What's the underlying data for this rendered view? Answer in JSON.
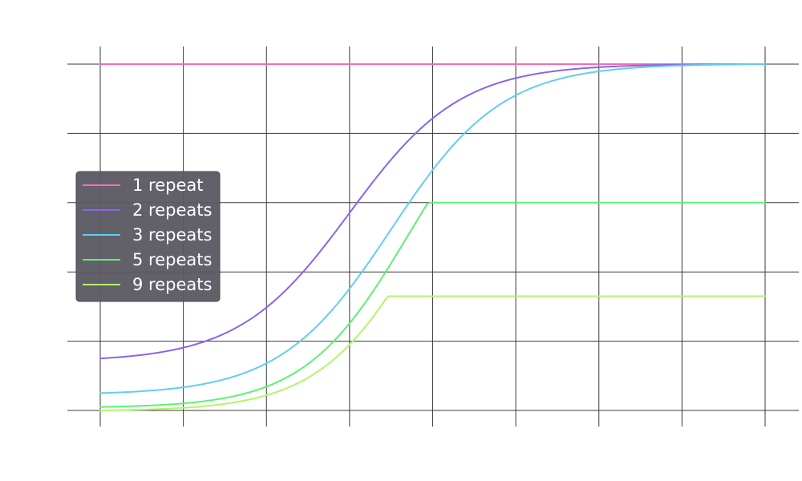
{
  "chart_data": {
    "type": "line",
    "title": "",
    "xlabel": "",
    "ylabel": "",
    "xlim": [
      0,
      8
    ],
    "ylim": [
      0,
      1
    ],
    "grid": true,
    "legend_position": "left-center",
    "x_ticks": [
      0,
      1,
      2,
      3,
      4,
      5,
      6,
      7,
      8
    ],
    "y_ticks": [
      0,
      0.2,
      0.4,
      0.6,
      0.8,
      1.0
    ],
    "series": [
      {
        "name": "1 repeat",
        "color": "#f26eb3",
        "kind": "constant",
        "value": 1.0
      },
      {
        "name": "2 repeats",
        "color": "#8a63ec",
        "kind": "sigmoid",
        "low": 0.15,
        "high": 1.0,
        "mid": 3.0,
        "k": 1.5,
        "cap": null
      },
      {
        "name": "3 repeats",
        "color": "#61cdf2",
        "kind": "sigmoid",
        "low": 0.05,
        "high": 1.0,
        "mid": 3.5,
        "k": 1.5,
        "cap": null
      },
      {
        "name": "5 repeats",
        "color": "#5df174",
        "kind": "sigmoid",
        "low": 0.01,
        "high": 1.0,
        "mid": 3.7,
        "k": 1.6,
        "cap": 0.6
      },
      {
        "name": "9 repeats",
        "color": "#b4f56a",
        "kind": "sigmoid",
        "low": 0.0,
        "high": 1.0,
        "mid": 3.9,
        "k": 1.6,
        "cap": 0.33
      }
    ],
    "legend_bg": "#5a5862"
  }
}
